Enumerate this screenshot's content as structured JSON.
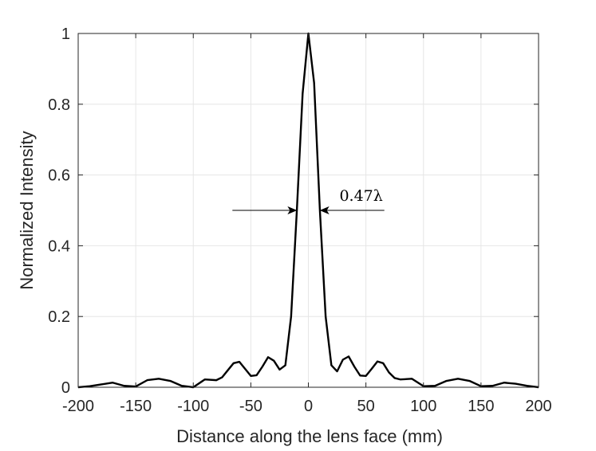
{
  "chart_data": {
    "type": "line",
    "xlabel": "Distance along the lens face (mm)",
    "ylabel": "Normalized Intensity",
    "xlim": [
      -200,
      200
    ],
    "ylim": [
      0,
      1
    ],
    "xticks": [
      -200,
      -150,
      -100,
      -50,
      0,
      50,
      100,
      150,
      200
    ],
    "yticks": [
      0,
      0.2,
      0.4,
      0.6,
      0.8,
      1
    ],
    "xtick_labels": [
      "-200",
      "-150",
      "-100",
      "-50",
      "0",
      "50",
      "100",
      "150",
      "200"
    ],
    "ytick_labels": [
      "0",
      "0.2",
      "0.4",
      "0.6",
      "0.8",
      "1"
    ],
    "grid": true,
    "series": [
      {
        "color": "#000000",
        "x": [
          -200,
          -190,
          -180,
          -170,
          -160,
          -150,
          -140,
          -130,
          -120,
          -110,
          -100,
          -90,
          -80,
          -75,
          -70,
          -65,
          -60,
          -55,
          -50,
          -45,
          -40,
          -35,
          -30,
          -25,
          -20,
          -15,
          -10,
          -5,
          0,
          5,
          10,
          15,
          20,
          25,
          30,
          35,
          40,
          45,
          50,
          55,
          60,
          65,
          70,
          75,
          80,
          90,
          100,
          110,
          120,
          130,
          140,
          150,
          160,
          170,
          180,
          190,
          200
        ],
        "y": [
          0.0,
          0.003,
          0.008,
          0.013,
          0.004,
          0.002,
          0.02,
          0.024,
          0.018,
          0.004,
          0.0,
          0.022,
          0.02,
          0.028,
          0.048,
          0.068,
          0.072,
          0.052,
          0.032,
          0.034,
          0.058,
          0.085,
          0.075,
          0.05,
          0.062,
          0.2,
          0.5,
          0.83,
          1.0,
          0.86,
          0.5,
          0.2,
          0.062,
          0.045,
          0.078,
          0.087,
          0.058,
          0.033,
          0.032,
          0.052,
          0.073,
          0.068,
          0.042,
          0.026,
          0.022,
          0.024,
          0.003,
          0.004,
          0.018,
          0.024,
          0.018,
          0.003,
          0.004,
          0.013,
          0.01,
          0.004,
          0.0
        ]
      }
    ],
    "annotation": {
      "text": "0.47λ",
      "y": 0.5,
      "arrow_tip_left": -10.5,
      "arrow_tip_right": 10.5,
      "arrow_tail_left": -66,
      "arrow_tail_right": 66
    }
  }
}
